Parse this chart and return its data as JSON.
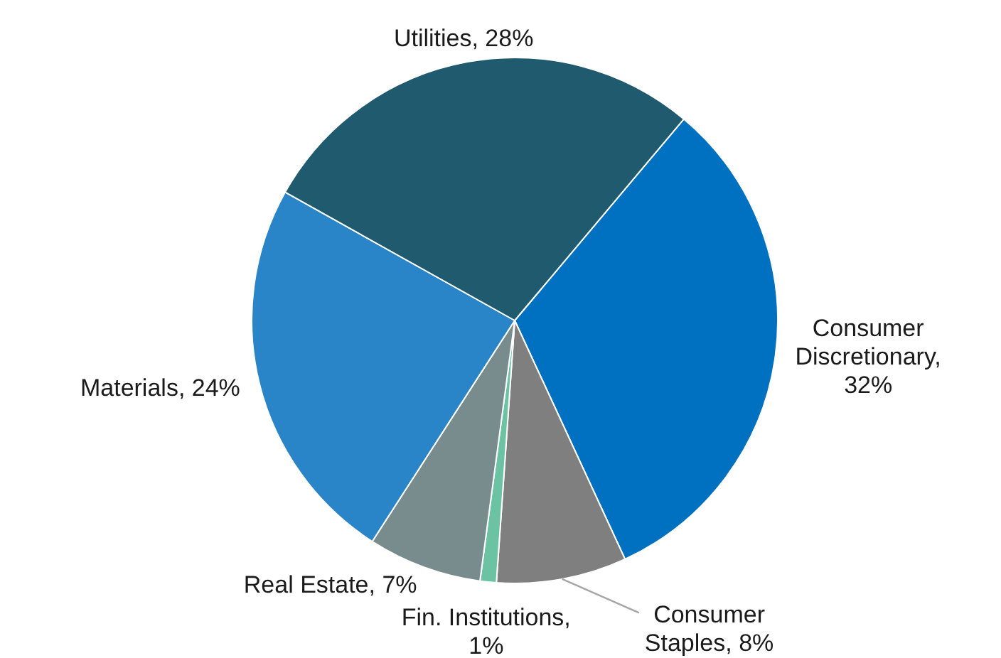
{
  "chart_data": {
    "type": "pie",
    "categories": [
      "Consumer Discretionary, 32%",
      "Consumer Staples, 8%",
      "Fin. Institutions, 1%",
      "Real Estate, 7%",
      "Materials, 24%",
      "Utilities, 28%"
    ],
    "values": [
      32,
      8,
      1,
      7,
      24,
      28
    ],
    "colors": [
      "#0070c0",
      "#7f7f7f",
      "#6cc3a3",
      "#788c8e",
      "#2a84c8",
      "#1f5a6e"
    ],
    "legend": false
  }
}
